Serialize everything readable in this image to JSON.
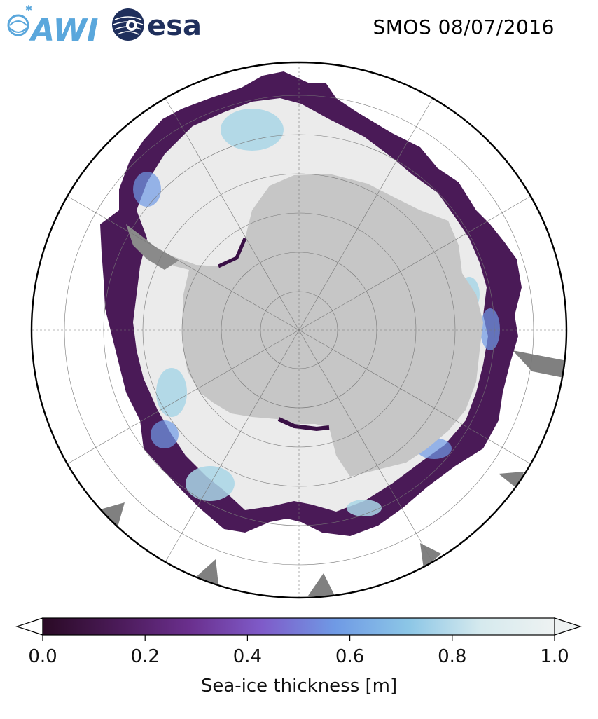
{
  "header": {
    "title": "SMOS 08/07/2016",
    "logos": [
      {
        "name": "awi-logo",
        "text": "AWI",
        "color": "#5aa7dc"
      },
      {
        "name": "esa-logo",
        "text": "esa",
        "color": "#1f2f5c"
      }
    ]
  },
  "map": {
    "projection": "south-polar-stereographic",
    "region": "Antarctica",
    "colors": {
      "land": "#c6c6c6",
      "ice_thick": "#ebebeb",
      "ice_mid": "#a9d6e6",
      "ice_thin": "#3a1046",
      "ocean": "#ffffff",
      "mask": "#808080"
    }
  },
  "colorbar": {
    "label": "Sea-ice thickness [m]",
    "ticks": [
      "0.0",
      "0.2",
      "0.4",
      "0.6",
      "0.8",
      "1.0"
    ],
    "range": [
      0,
      1
    ],
    "extend": "both",
    "colormap_stops": [
      "#2a0a25",
      "#4a1a57",
      "#6a2f8d",
      "#7f5bc9",
      "#6f9ae5",
      "#8cc6e6",
      "#d6eaee",
      "#eef2f2"
    ]
  }
}
